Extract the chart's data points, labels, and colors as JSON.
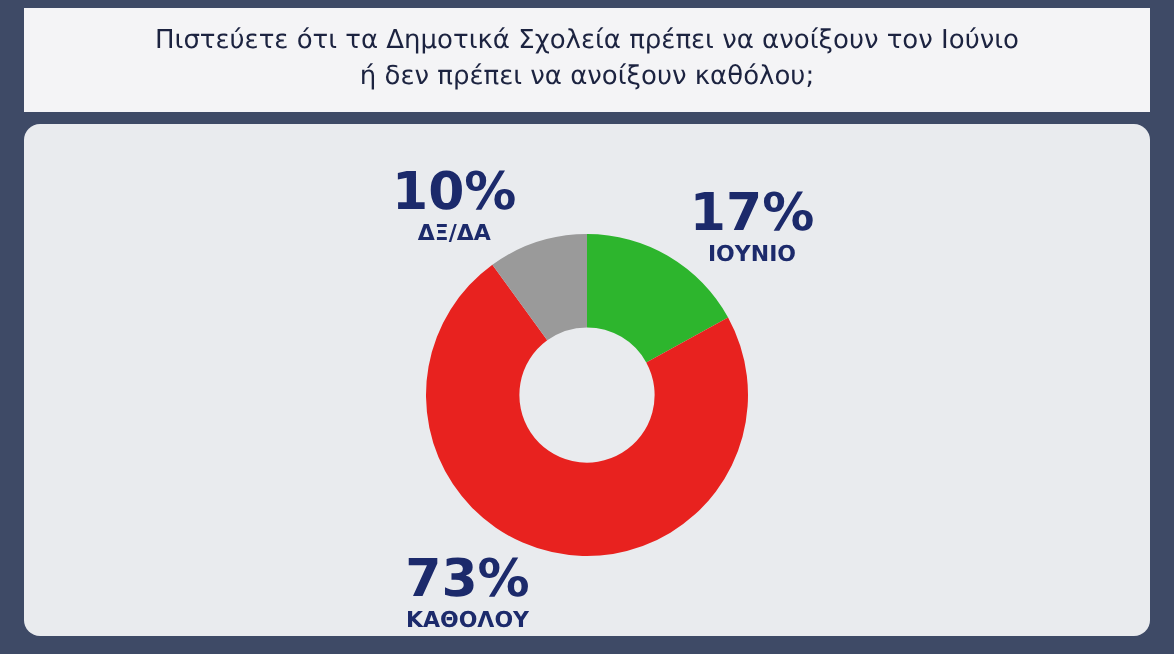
{
  "chart_data": {
    "type": "donut",
    "title": "Πιστεύετε ότι τα Δημοτικά Σχολεία πρέπει να ανοίξουν τον Ιούνιο ή δεν πρέπει να ανοίξουν καθόλου;",
    "categories": [
      "ΙΟΥΝΙΟ",
      "ΚΑΘΟΛΟΥ",
      "ΔΞ/ΔΑ"
    ],
    "values": [
      17,
      73,
      10
    ],
    "value_labels": [
      "17%",
      "73%",
      "10%"
    ],
    "colors": [
      "#2db52d",
      "#e8221f",
      "#9a9a9a"
    ],
    "legend": false
  }
}
